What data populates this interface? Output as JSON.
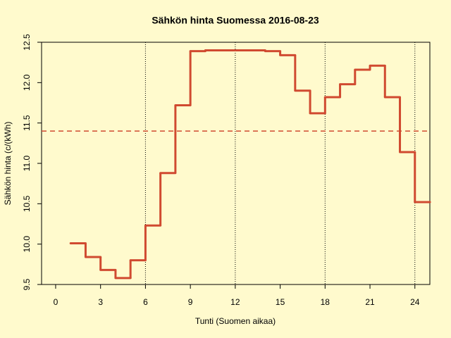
{
  "chart_data": {
    "type": "step",
    "title": "Sähkön hinta Suomessa 2016-08-23",
    "xlabel": "Tunti (Suomen aikaa)",
    "ylabel": "Sähkön hinta (c/(kWh)",
    "x": [
      1,
      2,
      3,
      4,
      5,
      6,
      7,
      8,
      9,
      10,
      11,
      12,
      13,
      14,
      15,
      16,
      17,
      18,
      19,
      20,
      21,
      22,
      23,
      24,
      25
    ],
    "series": [
      {
        "color": "#d04a30",
        "values": [
          10.01,
          9.84,
          9.68,
          9.58,
          9.8,
          10.23,
          10.88,
          11.72,
          12.39,
          12.4,
          12.4,
          12.4,
          12.4,
          12.39,
          12.34,
          11.9,
          11.62,
          11.82,
          11.98,
          12.16,
          12.21,
          11.82,
          11.14,
          10.52,
          10.52
        ]
      }
    ],
    "mean_line": {
      "value": 11.4,
      "color": "#d04a30"
    },
    "vlines": [
      6,
      12,
      18,
      24
    ],
    "xlim": [
      -0.94,
      25
    ],
    "ylim": [
      9.5,
      12.5
    ],
    "xticks": [
      0,
      3,
      6,
      9,
      12,
      15,
      18,
      21,
      24
    ],
    "yticks": [
      9.5,
      {
        "value": 10,
        "label": "10.0"
      },
      10.5,
      {
        "value": 11,
        "label": "11.0"
      },
      11.5,
      {
        "value": 12,
        "label": "12.0"
      },
      12.5
    ]
  }
}
